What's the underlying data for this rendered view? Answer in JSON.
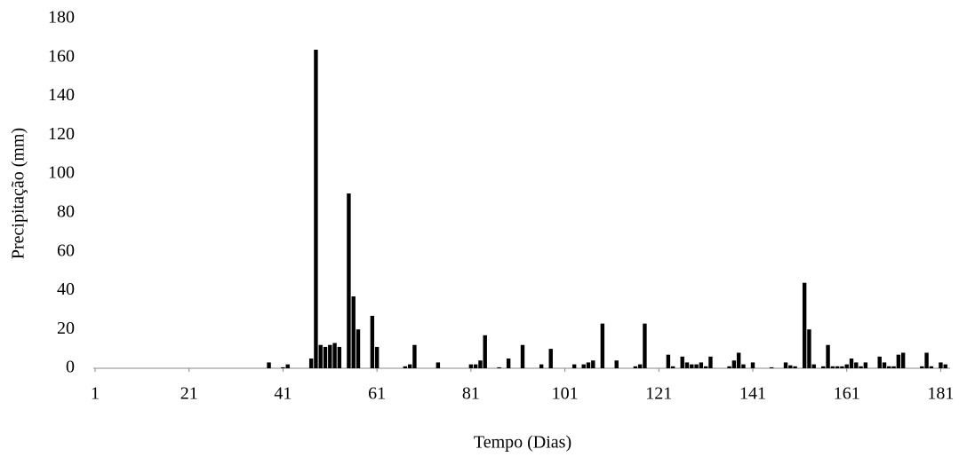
{
  "chart_data": {
    "type": "bar",
    "x_label": "Tempo (Dias)",
    "y_label": "Precipitação (mm)",
    "color": "#000000",
    "x": [
      38,
      41,
      42,
      47,
      48,
      49,
      50,
      51,
      52,
      53,
      55,
      56,
      57,
      60,
      61,
      67,
      68,
      69,
      74,
      81,
      82,
      83,
      84,
      87,
      89,
      92,
      96,
      98,
      103,
      105,
      106,
      107,
      109,
      112,
      116,
      117,
      118,
      123,
      124,
      126,
      127,
      128,
      129,
      130,
      131,
      132,
      136,
      137,
      138,
      139,
      141,
      145,
      148,
      149,
      150,
      152,
      153,
      154,
      156,
      157,
      158,
      159,
      160,
      161,
      162,
      163,
      164,
      165,
      168,
      169,
      170,
      171,
      172,
      173,
      177,
      178,
      179,
      181,
      182
    ],
    "values": [
      3,
      0.5,
      2,
      5,
      164,
      12,
      11,
      12,
      13,
      11,
      90,
      37,
      20,
      27,
      11,
      1,
      2,
      12,
      3,
      2,
      2,
      4,
      17,
      0.5,
      5,
      12,
      2,
      10,
      2,
      2,
      3,
      4,
      23,
      4,
      1,
      2,
      23,
      7,
      1,
      6,
      3,
      2,
      2,
      3,
      1,
      6,
      1,
      4,
      8,
      2,
      3,
      0.5,
      3,
      1.5,
      1,
      44,
      20,
      2,
      1,
      12,
      1,
      1,
      1,
      2,
      5,
      3,
      1,
      3,
      6,
      3,
      1,
      1,
      7,
      8,
      1,
      8,
      1,
      3,
      2
    ],
    "xlim": [
      1,
      183
    ],
    "xticks": [
      1,
      21,
      41,
      61,
      81,
      101,
      121,
      141,
      161,
      181
    ],
    "ylim": [
      0,
      180
    ],
    "yticks": [
      0,
      20,
      40,
      60,
      80,
      100,
      120,
      140,
      160,
      180
    ]
  }
}
